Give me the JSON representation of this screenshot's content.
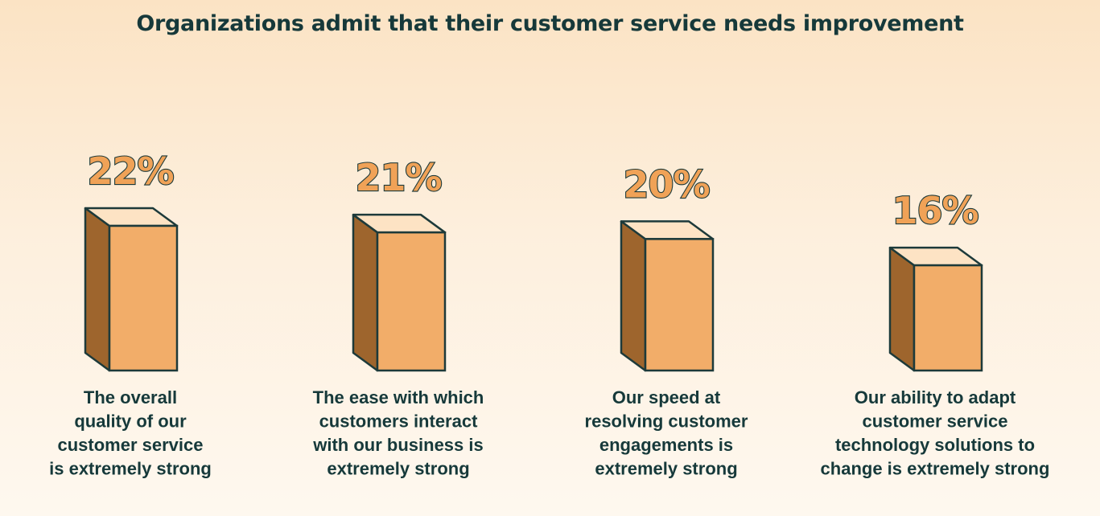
{
  "colors": {
    "front": "#f2ad69",
    "side": "#9e652d",
    "top": "#fde3c4",
    "outline": "#1d3a3a",
    "text": "#16393a"
  },
  "chart_data": {
    "type": "bar",
    "title": "Organizations admit that their customer service needs improvement",
    "categories": [
      "The overall quality of our customer service is extremely strong",
      "The ease with which customers interact with our business is extremely strong",
      "Our speed at resolving customer engagements is extremely strong",
      "Our ability to adapt customer service technology solutions to change is extremely strong"
    ],
    "category_lines": [
      [
        "The overall",
        "quality of our",
        "customer service",
        "is extremely strong"
      ],
      [
        "The ease with which",
        "customers interact",
        "with our business is",
        "extremely strong"
      ],
      [
        "Our speed at",
        "resolving customer",
        "engagements is",
        "extremely strong"
      ],
      [
        "Our ability to adapt",
        "customer service",
        "technology solutions to",
        "change is extremely strong"
      ]
    ],
    "values": [
      22,
      21,
      20,
      16
    ],
    "value_labels": [
      "22%",
      "21%",
      "20%",
      "16%"
    ],
    "unit": "%",
    "xlabel": "",
    "ylabel": "",
    "grid": false,
    "legend": "none"
  }
}
